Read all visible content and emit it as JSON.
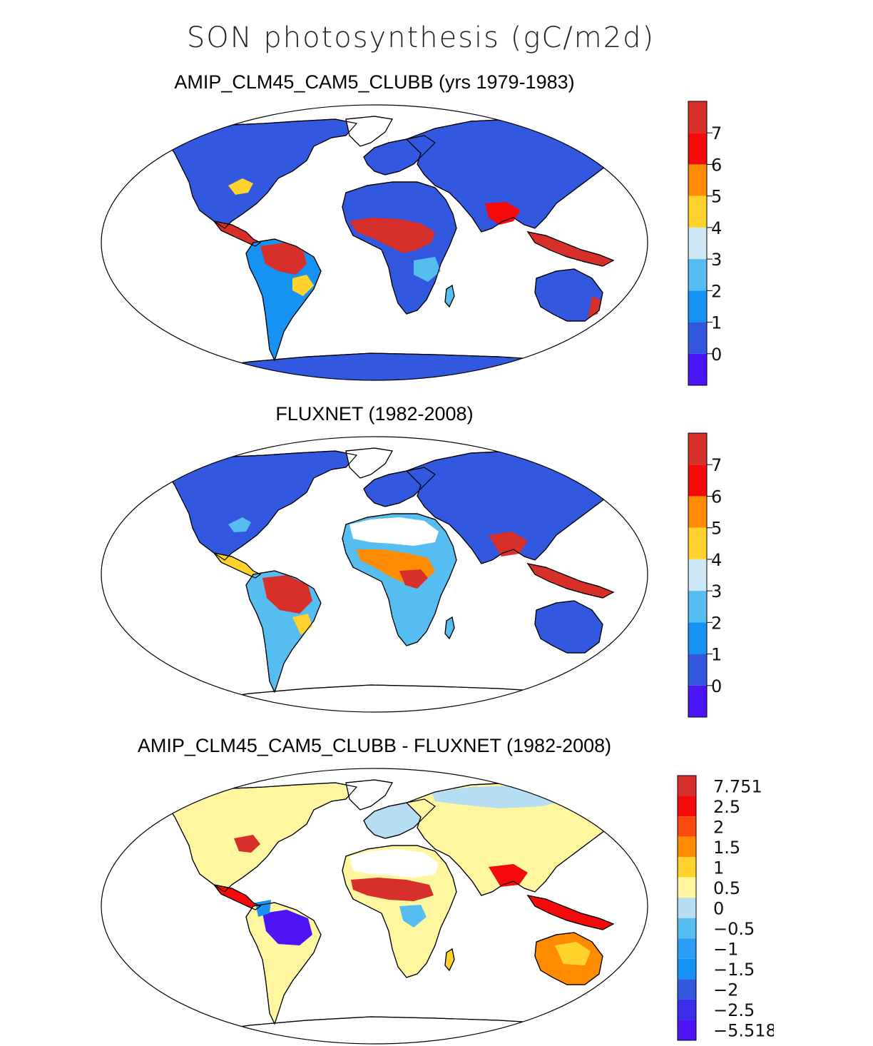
{
  "title": "SON photosynthesis (gC/m2d)",
  "panels": [
    {
      "id": "model",
      "title": "AMIP_CLM45_CAM5_CLUBB (yrs 1979-1983)",
      "colorbar_labels": [
        "7",
        "6",
        "5",
        "4",
        "3",
        "2",
        "1",
        "0"
      ],
      "colorbar_colors": [
        "#d7302a",
        "#f40a0a",
        "#ff8c00",
        "#ffd32b",
        "#cce7f6",
        "#56bdf0",
        "#1592f2",
        "#3358e0",
        "#4d14f5"
      ]
    },
    {
      "id": "obs",
      "title": "FLUXNET (1982-2008)",
      "colorbar_labels": [
        "7",
        "6",
        "5",
        "4",
        "3",
        "2",
        "1",
        "0"
      ],
      "colorbar_colors": [
        "#d7302a",
        "#f40a0a",
        "#ff8c00",
        "#ffd32b",
        "#cce7f6",
        "#56bdf0",
        "#1592f2",
        "#3358e0",
        "#4d14f5"
      ]
    },
    {
      "id": "diff",
      "title": "AMIP_CLM45_CAM5_CLUBB - FLUXNET (1982-2008)",
      "colorbar_labels": [
        "7.751",
        "2.5",
        "2",
        "1.5",
        "1",
        "0.5",
        "0",
        "−0.5",
        "−1",
        "−1.5",
        "−2",
        "−2.5",
        "−5.518"
      ],
      "colorbar_colors": [
        "#d7302a",
        "#f40a0a",
        "#fb4a10",
        "#ff8c00",
        "#ffd32b",
        "#fff6a0",
        "#b7ddf2",
        "#56bdf0",
        "#2a9df5",
        "#1592f2",
        "#3358e0",
        "#3a2ce8",
        "#4d14f5"
      ]
    }
  ]
}
